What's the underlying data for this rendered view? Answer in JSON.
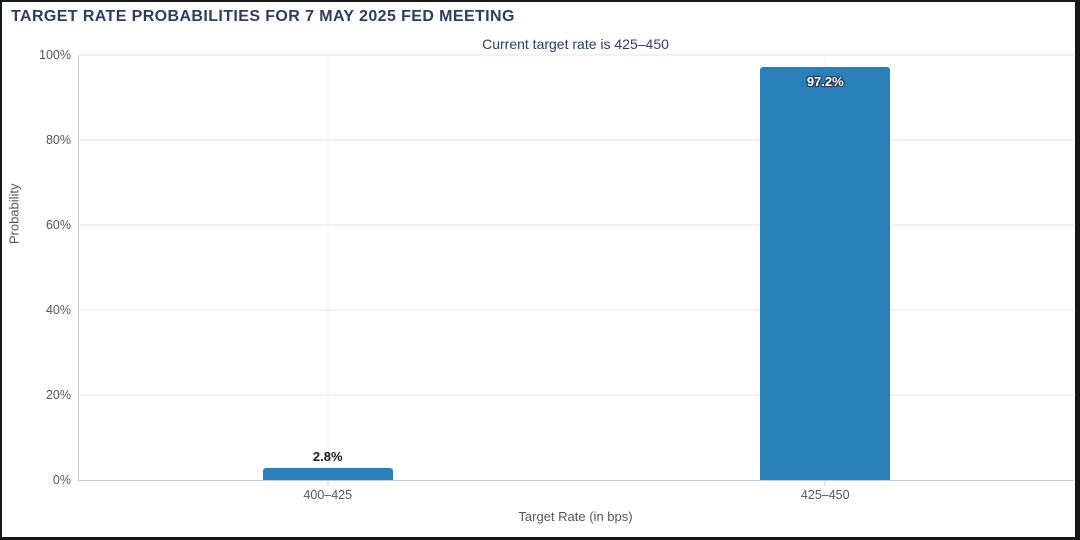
{
  "chart_data": {
    "type": "bar",
    "title": "TARGET RATE PROBABILITIES FOR 7 MAY 2025 FED MEETING",
    "subtitle": "Current target rate is 425–450",
    "categories": [
      "400–425",
      "425–450"
    ],
    "values": [
      2.8,
      97.2
    ],
    "value_labels": [
      "2.8%",
      "97.2%"
    ],
    "xlabel": "Target Rate (in bps)",
    "ylabel": "Probability",
    "ylim": [
      0,
      100
    ],
    "yticks": [
      0,
      20,
      40,
      60,
      80,
      100
    ],
    "ytick_labels": [
      "0%",
      "20%",
      "40%",
      "60%",
      "80%",
      "100%"
    ],
    "grid": true,
    "legend": "none"
  },
  "colors": {
    "title_text": "#2c3c64",
    "bar_fill": "#2980b9",
    "axis_text": "#55565a",
    "gridline": "#e6e6e6",
    "axis_line": "#c9c9c9",
    "inside_label_text": "#ffffff",
    "outside_label_text": "#1a1a1a"
  }
}
